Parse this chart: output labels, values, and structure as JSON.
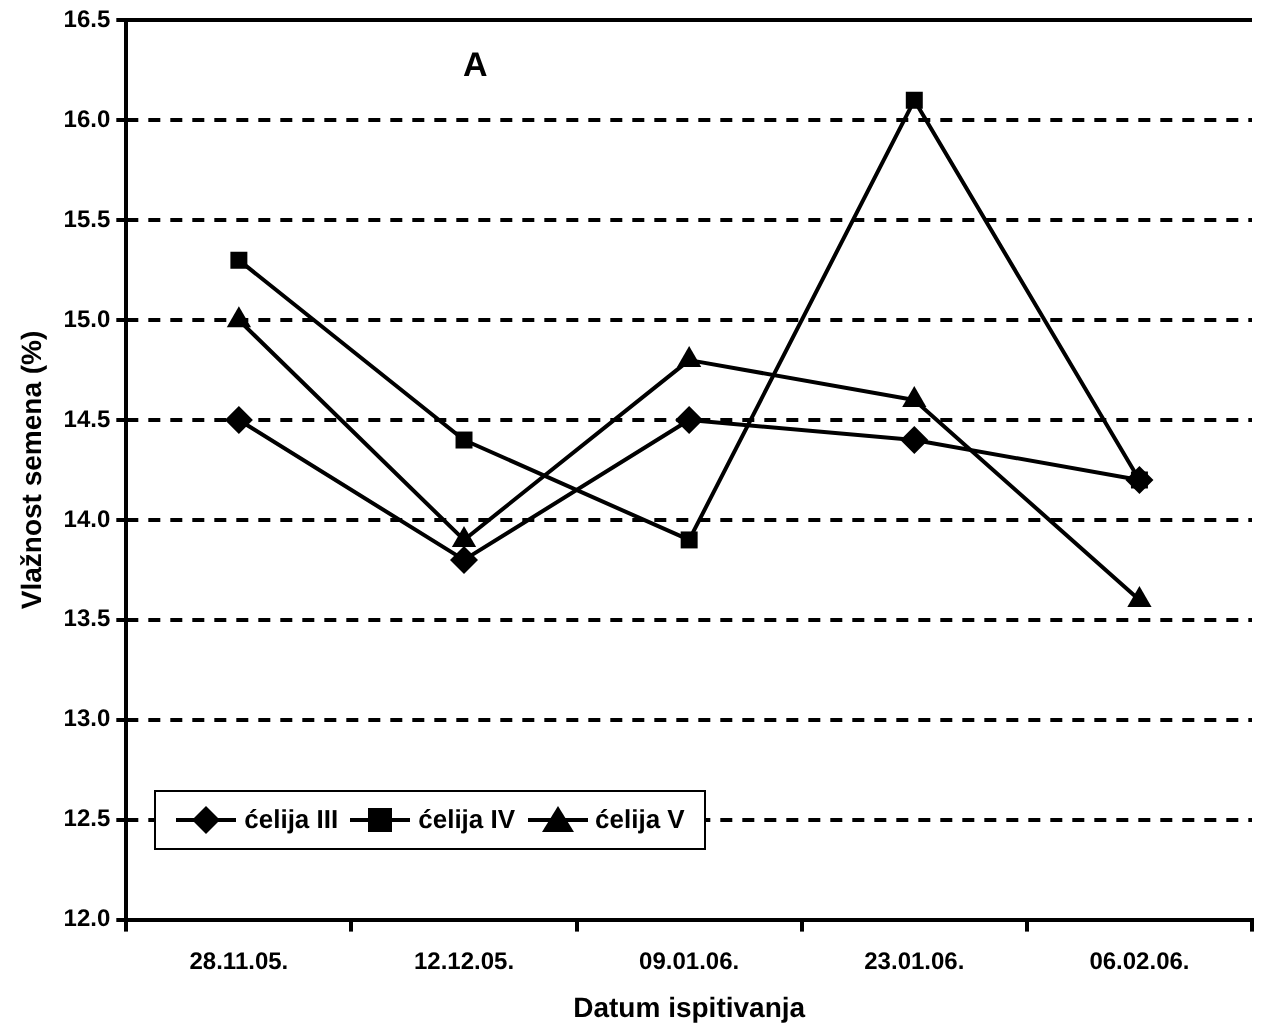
{
  "chart_data": {
    "type": "line",
    "xlabel": "Datum ispitivanja",
    "ylabel": "Vlažnost semena (%)",
    "annotations": [
      "A"
    ],
    "categories": [
      "28.11.05.",
      "12.12.05.",
      "09.01.06.",
      "23.01.06.",
      "06.02.06."
    ],
    "series": [
      {
        "name": "ćelija III",
        "color": "#000000",
        "marker": "diamond",
        "values": [
          14.5,
          13.8,
          14.5,
          14.4,
          14.2
        ]
      },
      {
        "name": "ćelija IV",
        "color": "#000000",
        "marker": "square",
        "values": [
          15.3,
          14.4,
          13.9,
          16.1,
          14.2
        ]
      },
      {
        "name": "ćelija V",
        "color": "#000000",
        "marker": "triangle",
        "values": [
          15.0,
          13.9,
          14.8,
          14.6,
          13.6
        ]
      }
    ],
    "ylim": [
      12,
      16.5
    ],
    "yticks": [
      {
        "value": 12,
        "label": "12.0"
      },
      {
        "value": 12.5,
        "label": "12.5"
      },
      {
        "value": 13,
        "label": "13.0"
      },
      {
        "value": 13.5,
        "label": "13.5"
      },
      {
        "value": 14,
        "label": "14.0"
      },
      {
        "value": 14.5,
        "label": "14.5"
      },
      {
        "value": 15,
        "label": "15.0"
      },
      {
        "value": 15.5,
        "label": "15.5"
      },
      {
        "value": 16,
        "label": "16.0"
      },
      {
        "value": 16.5,
        "label": "16.5"
      }
    ],
    "grid": "y",
    "legend": "bottom",
    "line_style": "solid"
  }
}
